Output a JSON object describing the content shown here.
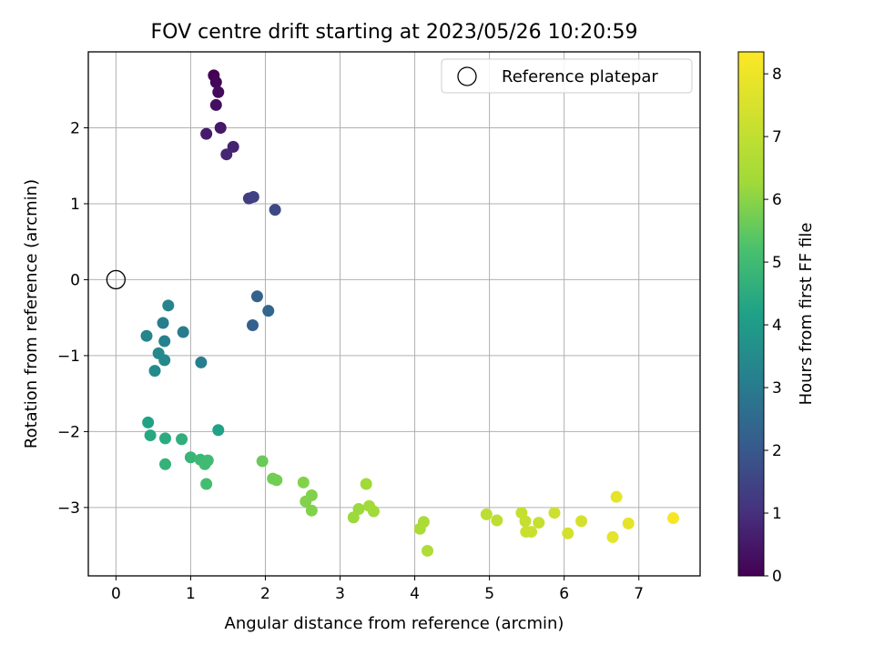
{
  "chart_data": {
    "type": "scatter",
    "title": "FOV centre drift starting at 2023/05/26 10:20:59",
    "xlabel": "Angular distance from reference (arcmin)",
    "ylabel": "Rotation from reference (arcmin)",
    "xlim": [
      -0.37,
      7.82
    ],
    "ylim": [
      -3.9,
      3.0
    ],
    "xticks": [
      "0",
      "1",
      "2",
      "3",
      "4",
      "5",
      "6",
      "7"
    ],
    "yticks": [
      "−3",
      "−2",
      "−1",
      "0",
      "1",
      "2"
    ],
    "grid": true,
    "legend": {
      "position": "top-right",
      "entries": [
        "Reference platepar"
      ]
    },
    "reference_point": {
      "x": 0,
      "y": 0
    },
    "colorbar": {
      "label": "Hours from first FF file",
      "range": [
        0,
        8.35
      ],
      "ticks": [
        "0",
        "1",
        "2",
        "3",
        "4",
        "5",
        "6",
        "7",
        "8"
      ],
      "colormap": "viridis"
    },
    "points": [
      {
        "x": 1.31,
        "y": 2.69,
        "c": 0.0
      },
      {
        "x": 1.34,
        "y": 2.6,
        "c": 0.1
      },
      {
        "x": 1.37,
        "y": 2.47,
        "c": 0.2
      },
      {
        "x": 1.34,
        "y": 2.3,
        "c": 0.3
      },
      {
        "x": 1.4,
        "y": 2.0,
        "c": 0.5
      },
      {
        "x": 1.21,
        "y": 1.92,
        "c": 0.55
      },
      {
        "x": 1.57,
        "y": 1.75,
        "c": 0.7
      },
      {
        "x": 1.48,
        "y": 1.65,
        "c": 0.8
      },
      {
        "x": 1.78,
        "y": 1.07,
        "c": 1.3
      },
      {
        "x": 1.84,
        "y": 1.09,
        "c": 1.4
      },
      {
        "x": 2.13,
        "y": 0.92,
        "c": 1.6
      },
      {
        "x": 1.89,
        "y": -0.22,
        "c": 2.3
      },
      {
        "x": 2.04,
        "y": -0.41,
        "c": 2.4
      },
      {
        "x": 1.83,
        "y": -0.6,
        "c": 2.2
      },
      {
        "x": 0.7,
        "y": -0.34,
        "c": 3.3
      },
      {
        "x": 0.63,
        "y": -0.57,
        "c": 3.1
      },
      {
        "x": 0.65,
        "y": -0.81,
        "c": 3.2
      },
      {
        "x": 0.9,
        "y": -0.69,
        "c": 3.0
      },
      {
        "x": 0.41,
        "y": -0.74,
        "c": 3.3
      },
      {
        "x": 0.57,
        "y": -0.97,
        "c": 3.4
      },
      {
        "x": 0.65,
        "y": -1.06,
        "c": 3.4
      },
      {
        "x": 0.52,
        "y": -1.2,
        "c": 3.5
      },
      {
        "x": 1.14,
        "y": -1.09,
        "c": 3.1
      },
      {
        "x": 0.43,
        "y": -1.88,
        "c": 4.2
      },
      {
        "x": 1.37,
        "y": -1.98,
        "c": 4.2
      },
      {
        "x": 0.46,
        "y": -2.05,
        "c": 4.4
      },
      {
        "x": 0.66,
        "y": -2.09,
        "c": 4.5
      },
      {
        "x": 0.88,
        "y": -2.1,
        "c": 4.6
      },
      {
        "x": 1.0,
        "y": -2.34,
        "c": 4.8
      },
      {
        "x": 1.13,
        "y": -2.37,
        "c": 4.9
      },
      {
        "x": 1.23,
        "y": -2.38,
        "c": 5.0
      },
      {
        "x": 1.19,
        "y": -2.43,
        "c": 5.0
      },
      {
        "x": 0.66,
        "y": -2.43,
        "c": 4.7
      },
      {
        "x": 1.21,
        "y": -2.69,
        "c": 5.1
      },
      {
        "x": 1.96,
        "y": -2.39,
        "c": 5.6
      },
      {
        "x": 2.1,
        "y": -2.62,
        "c": 5.7
      },
      {
        "x": 2.15,
        "y": -2.64,
        "c": 5.7
      },
      {
        "x": 2.51,
        "y": -2.67,
        "c": 5.9
      },
      {
        "x": 2.62,
        "y": -2.84,
        "c": 5.9
      },
      {
        "x": 2.54,
        "y": -2.92,
        "c": 5.9
      },
      {
        "x": 2.62,
        "y": -3.04,
        "c": 5.9
      },
      {
        "x": 3.35,
        "y": -2.69,
        "c": 6.3
      },
      {
        "x": 3.39,
        "y": -2.98,
        "c": 6.3
      },
      {
        "x": 3.25,
        "y": -3.02,
        "c": 6.2
      },
      {
        "x": 3.45,
        "y": -3.05,
        "c": 6.3
      },
      {
        "x": 3.18,
        "y": -3.13,
        "c": 6.2
      },
      {
        "x": 4.12,
        "y": -3.19,
        "c": 6.5
      },
      {
        "x": 4.07,
        "y": -3.28,
        "c": 6.5
      },
      {
        "x": 4.17,
        "y": -3.57,
        "c": 6.6
      },
      {
        "x": 4.96,
        "y": -3.09,
        "c": 6.9
      },
      {
        "x": 5.1,
        "y": -3.17,
        "c": 6.9
      },
      {
        "x": 5.43,
        "y": -3.07,
        "c": 7.1
      },
      {
        "x": 5.48,
        "y": -3.18,
        "c": 7.1
      },
      {
        "x": 5.66,
        "y": -3.2,
        "c": 7.1
      },
      {
        "x": 5.49,
        "y": -3.32,
        "c": 7.2
      },
      {
        "x": 5.56,
        "y": -3.32,
        "c": 7.2
      },
      {
        "x": 5.87,
        "y": -3.07,
        "c": 7.3
      },
      {
        "x": 6.05,
        "y": -3.34,
        "c": 7.4
      },
      {
        "x": 6.23,
        "y": -3.18,
        "c": 7.4
      },
      {
        "x": 6.65,
        "y": -3.39,
        "c": 7.8
      },
      {
        "x": 6.7,
        "y": -2.86,
        "c": 7.8
      },
      {
        "x": 6.86,
        "y": -3.21,
        "c": 7.8
      },
      {
        "x": 7.46,
        "y": -3.14,
        "c": 8.2
      }
    ]
  }
}
